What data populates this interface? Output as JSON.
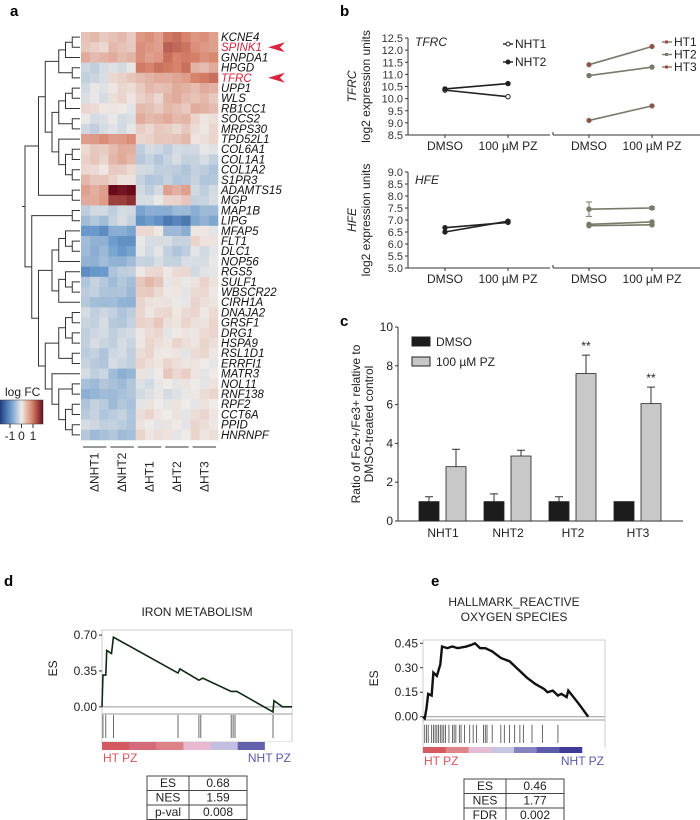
{
  "panels": {
    "a": "a",
    "b": "b",
    "c": "c",
    "d": "d",
    "e": "e"
  },
  "chart_data": [
    {
      "type": "heatmap",
      "panel": "a",
      "columns": [
        "ΔNHT1",
        "ΔNHT2",
        "ΔHT1",
        "ΔHT2",
        "ΔHT3"
      ],
      "replicates_per_column": 3,
      "legend_title": "log FC",
      "legend_ticks": [
        "-1",
        "0",
        "1"
      ],
      "color_range": [
        -1.5,
        1.5
      ],
      "colors": {
        "low": "#1f3f84",
        "mid": "#efebe8",
        "high": "#6b0a1a",
        "highlight": "#d7263d"
      },
      "highlighted_genes": [
        "SPINK1",
        "TFRC"
      ],
      "rows": [
        {
          "gene": "KCNE4",
          "values": [
            0.3,
            0.3,
            0.6,
            0.8,
            0.6
          ]
        },
        {
          "gene": "SPINK1",
          "values": [
            0.2,
            0.3,
            0.6,
            0.9,
            0.6
          ]
        },
        {
          "gene": "GNPDA1",
          "values": [
            0.4,
            0.4,
            0.6,
            0.8,
            0.7
          ]
        },
        {
          "gene": "HPGD",
          "values": [
            -0.2,
            -0.1,
            0.8,
            0.8,
            0.4
          ]
        },
        {
          "gene": "TFRC",
          "values": [
            -0.2,
            0.2,
            0.4,
            0.5,
            0.8
          ]
        },
        {
          "gene": "UPP1",
          "values": [
            -0.1,
            0.1,
            0.3,
            0.4,
            0.4
          ]
        },
        {
          "gene": "WLS",
          "values": [
            -0.1,
            0.1,
            0.2,
            0.4,
            0.3
          ]
        },
        {
          "gene": "RB1CC1",
          "values": [
            0.1,
            0.0,
            0.3,
            0.3,
            0.4
          ]
        },
        {
          "gene": "SOCS2",
          "values": [
            -0.1,
            -0.1,
            0.4,
            0.4,
            0.1
          ]
        },
        {
          "gene": "MRPS30",
          "values": [
            -0.2,
            -0.1,
            0.2,
            0.2,
            0.1
          ]
        },
        {
          "gene": "TPD52L1",
          "values": [
            0.6,
            0.6,
            0.2,
            0.3,
            0.1
          ]
        },
        {
          "gene": "COL6A1",
          "values": [
            0.2,
            0.4,
            -0.2,
            -0.2,
            -0.1
          ]
        },
        {
          "gene": "COL1A1",
          "values": [
            0.2,
            0.4,
            -0.3,
            -0.2,
            -0.2
          ]
        },
        {
          "gene": "COL1A2",
          "values": [
            0.1,
            0.2,
            -0.2,
            -0.3,
            -0.3
          ]
        },
        {
          "gene": "S1PR3",
          "values": [
            0.3,
            0.1,
            -0.3,
            -0.3,
            -0.3
          ]
        },
        {
          "gene": "ADAMTS15",
          "values": [
            0.5,
            1.5,
            -0.2,
            0.5,
            -0.2
          ]
        },
        {
          "gene": "MGP",
          "values": [
            0.5,
            1.2,
            -0.1,
            0.2,
            -0.2
          ]
        },
        {
          "gene": "MAP1B",
          "values": [
            -0.2,
            -0.2,
            -0.6,
            -0.5,
            -0.5
          ]
        },
        {
          "gene": "LIPG",
          "values": [
            -0.4,
            -0.2,
            -0.8,
            -1.0,
            -0.6
          ]
        },
        {
          "gene": "MFAP5",
          "values": [
            -0.8,
            -0.6,
            0.1,
            -0.5,
            0.0
          ]
        },
        {
          "gene": "FLT1",
          "values": [
            -0.5,
            -0.8,
            -0.1,
            -0.2,
            0.1
          ]
        },
        {
          "gene": "DLC1",
          "values": [
            -0.5,
            -0.7,
            -0.1,
            -0.3,
            -0.1
          ]
        },
        {
          "gene": "NOP56",
          "values": [
            -0.5,
            -0.5,
            -0.2,
            -0.2,
            -0.1
          ]
        },
        {
          "gene": "RGS5",
          "values": [
            -0.8,
            -0.3,
            0.1,
            0.1,
            -0.1
          ]
        },
        {
          "gene": "SULF1",
          "values": [
            -0.3,
            -0.4,
            0.3,
            0.0,
            0.1
          ]
        },
        {
          "gene": "WBSCR22",
          "values": [
            -0.3,
            -0.4,
            0.2,
            0.0,
            0.1
          ]
        },
        {
          "gene": "CIRH1A",
          "values": [
            -0.4,
            -0.5,
            0.1,
            0.0,
            0.1
          ]
        },
        {
          "gene": "DNAJA2",
          "values": [
            -0.2,
            -0.3,
            0.1,
            0.1,
            0.1
          ]
        },
        {
          "gene": "GRSF1",
          "values": [
            -0.2,
            -0.3,
            0.2,
            0.1,
            0.1
          ]
        },
        {
          "gene": "DRG1",
          "values": [
            -0.2,
            -0.2,
            0.1,
            0.0,
            0.1
          ]
        },
        {
          "gene": "HSPA9",
          "values": [
            -0.2,
            -0.2,
            0.1,
            0.1,
            0.1
          ]
        },
        {
          "gene": "RSL1D1",
          "values": [
            -0.3,
            -0.2,
            0.1,
            0.0,
            0.1
          ]
        },
        {
          "gene": "ERRFI1",
          "values": [
            -0.3,
            -0.2,
            0.1,
            0.1,
            0.0
          ]
        },
        {
          "gene": "MATR3",
          "values": [
            -0.2,
            -0.5,
            0.0,
            0.2,
            0.0
          ]
        },
        {
          "gene": "NOL11",
          "values": [
            -0.4,
            -0.4,
            -0.1,
            0.0,
            0.0
          ]
        },
        {
          "gene": "RNF138",
          "values": [
            -0.5,
            -0.4,
            -0.1,
            -0.1,
            0.1
          ]
        },
        {
          "gene": "RPF2",
          "values": [
            -0.3,
            -0.4,
            0.0,
            0.0,
            0.0
          ]
        },
        {
          "gene": "CCT6A",
          "values": [
            -0.3,
            -0.3,
            0.1,
            0.0,
            0.1
          ]
        },
        {
          "gene": "PPID",
          "values": [
            -0.2,
            -0.3,
            0.0,
            0.0,
            0.1
          ]
        },
        {
          "gene": "HNRNPF",
          "values": [
            -0.4,
            -0.4,
            0.1,
            0.0,
            0.1
          ]
        }
      ]
    },
    {
      "type": "line",
      "panel": "b",
      "title": "TFRC",
      "ylabel_gene": "TFRC",
      "ylabel": "log2 expression units",
      "ylim": [
        8.5,
        12.5
      ],
      "yticks": [
        "8.5",
        "9.0",
        "9.5",
        "10.0",
        "10.5",
        "11.0",
        "11.5",
        "12.0",
        "12.5"
      ],
      "categories": [
        "DMSO",
        "100 µM PZ"
      ],
      "groups": [
        {
          "series": [
            {
              "name": "NHT1",
              "values": [
                10.35,
                10.08
              ],
              "marker": "open"
            },
            {
              "name": "NHT2",
              "values": [
                10.4,
                10.62
              ],
              "marker": "filled"
            }
          ],
          "color": "#222222"
        },
        {
          "series": [
            {
              "name": "HT1",
              "values": [
                11.4,
                12.15
              ],
              "marker": "red"
            },
            {
              "name": "HT2",
              "values": [
                10.95,
                11.3
              ],
              "marker": "grey"
            },
            {
              "name": "HT3",
              "values": [
                9.1,
                9.7
              ],
              "marker": "red"
            }
          ],
          "color": "#7a7a6a"
        }
      ]
    },
    {
      "type": "line",
      "panel": "b",
      "title": "HFE",
      "ylabel_gene": "HFE",
      "ylabel": "log2 expression units",
      "ylim": [
        5.0,
        9.0
      ],
      "yticks": [
        "5.0",
        "5.5",
        "6.0",
        "6.5",
        "7.0",
        "7.5",
        "8.0",
        "8.5",
        "9.0"
      ],
      "categories": [
        "DMSO",
        "100 µM PZ"
      ],
      "groups": [
        {
          "series": [
            {
              "name": "NHT1",
              "values": [
                6.5,
                6.95
              ]
            },
            {
              "name": "NHT2",
              "values": [
                6.68,
                6.9
              ]
            }
          ],
          "color": "#222222"
        },
        {
          "series": [
            {
              "name": "HT1",
              "values": [
                7.45,
                7.5
              ],
              "err": [
                0.3,
                0.05
              ]
            },
            {
              "name": "HT2",
              "values": [
                6.82,
                6.92
              ]
            },
            {
              "name": "HT3",
              "values": [
                6.76,
                6.8
              ]
            }
          ],
          "color": "#7a7a6a"
        }
      ]
    },
    {
      "type": "bar",
      "panel": "c",
      "ylabel": [
        "Ratio of Fe2+/Fe3+ relative to",
        "DMSO-treated control"
      ],
      "ylim": [
        0,
        10
      ],
      "yticks": [
        "0",
        "2",
        "4",
        "6",
        "8",
        "10"
      ],
      "categories": [
        "NHT1",
        "NHT2",
        "HT2",
        "HT3"
      ],
      "series": [
        {
          "name": "DMSO",
          "values": [
            1,
            1,
            1,
            1
          ],
          "err": [
            0.25,
            0.4,
            0.25,
            0.0
          ],
          "color": "#1c1c1c"
        },
        {
          "name": "100 µM PZ",
          "values": [
            2.8,
            3.35,
            7.6,
            6.05
          ],
          "err": [
            0.9,
            0.3,
            0.95,
            0.85
          ],
          "color": "#c8c8c8"
        }
      ],
      "annotations": [
        "",
        "",
        "**",
        "**"
      ]
    },
    {
      "type": "line",
      "panel": "d",
      "title": [
        "IRON METABOLISM"
      ],
      "ylabel": "ES",
      "yticks": [
        "0.00",
        "0.35",
        "0.70"
      ],
      "ylim": [
        -0.07,
        0.75
      ],
      "x": [
        0,
        0.005,
        0.02,
        0.025,
        0.05,
        0.06,
        0.4,
        0.41,
        0.51,
        0.53,
        0.68,
        0.71,
        0.9,
        0.905,
        0.95,
        1
      ],
      "y": [
        0,
        0.31,
        0.31,
        0.55,
        0.52,
        0.68,
        0.33,
        0.37,
        0.26,
        0.28,
        0.15,
        0.15,
        -0.05,
        0.06,
        0,
        0
      ],
      "hits": [
        0.005,
        0.02,
        0.06,
        0.4,
        0.51,
        0.52,
        0.68,
        0.69,
        0.7,
        0.9
      ],
      "rank_colors": [
        "#d45a5f",
        "#d46a7a",
        "#dc8286",
        "#e9b9cf",
        "#c1bedf",
        "#6260ab",
        "#ffffff"
      ],
      "left_label": "HT PZ",
      "right_label": "NHT PZ",
      "stats": [
        [
          "ES",
          "0.68"
        ],
        [
          "NES",
          "1.59"
        ],
        [
          "p-val",
          "0.008"
        ]
      ]
    },
    {
      "type": "line",
      "panel": "e",
      "title": [
        "HALLMARK_REACTIVE",
        "OXYGEN SPECIES"
      ],
      "ylabel": "ES",
      "yticks": [
        "0.00",
        "0.15",
        "0.30",
        "0.45"
      ],
      "ylim": [
        -0.02,
        0.47
      ],
      "x": [
        0,
        0.01,
        0.02,
        0.03,
        0.05,
        0.06,
        0.08,
        0.1,
        0.11,
        0.14,
        0.17,
        0.2,
        0.25,
        0.28,
        0.3,
        0.33,
        0.36,
        0.4,
        0.45,
        0.5,
        0.55,
        0.6,
        0.65,
        0.7,
        0.72,
        0.75,
        0.78,
        0.8,
        0.83,
        0.84,
        0.9,
        0.955
      ],
      "y": [
        0,
        -0.01,
        0.05,
        0.14,
        0.13,
        0.27,
        0.25,
        0.32,
        0.43,
        0.42,
        0.43,
        0.42,
        0.43,
        0.44,
        0.45,
        0.42,
        0.42,
        0.4,
        0.36,
        0.34,
        0.29,
        0.24,
        0.2,
        0.17,
        0.15,
        0.16,
        0.13,
        0.14,
        0.12,
        0.16,
        0.08,
        0
      ],
      "hits": [
        0.01,
        0.02,
        0.03,
        0.05,
        0.06,
        0.07,
        0.08,
        0.09,
        0.1,
        0.11,
        0.12,
        0.13,
        0.15,
        0.17,
        0.18,
        0.19,
        0.21,
        0.22,
        0.24,
        0.27,
        0.29,
        0.31,
        0.35,
        0.36,
        0.37,
        0.4,
        0.45,
        0.47,
        0.5,
        0.53,
        0.56,
        0.58,
        0.63,
        0.69,
        0.78
      ],
      "rank_colors": [
        "#d65a5f",
        "#dc8589",
        "#e6bcd4",
        "#c6c5e4",
        "#8482c0",
        "#5c5aaa",
        "#3e3c98",
        "#ffffff"
      ],
      "left_label": "HT PZ",
      "right_label": "NHT PZ",
      "stats": [
        [
          "ES",
          "0.46"
        ],
        [
          "NES",
          "1.77"
        ],
        [
          "FDR",
          "0.002"
        ]
      ]
    }
  ]
}
